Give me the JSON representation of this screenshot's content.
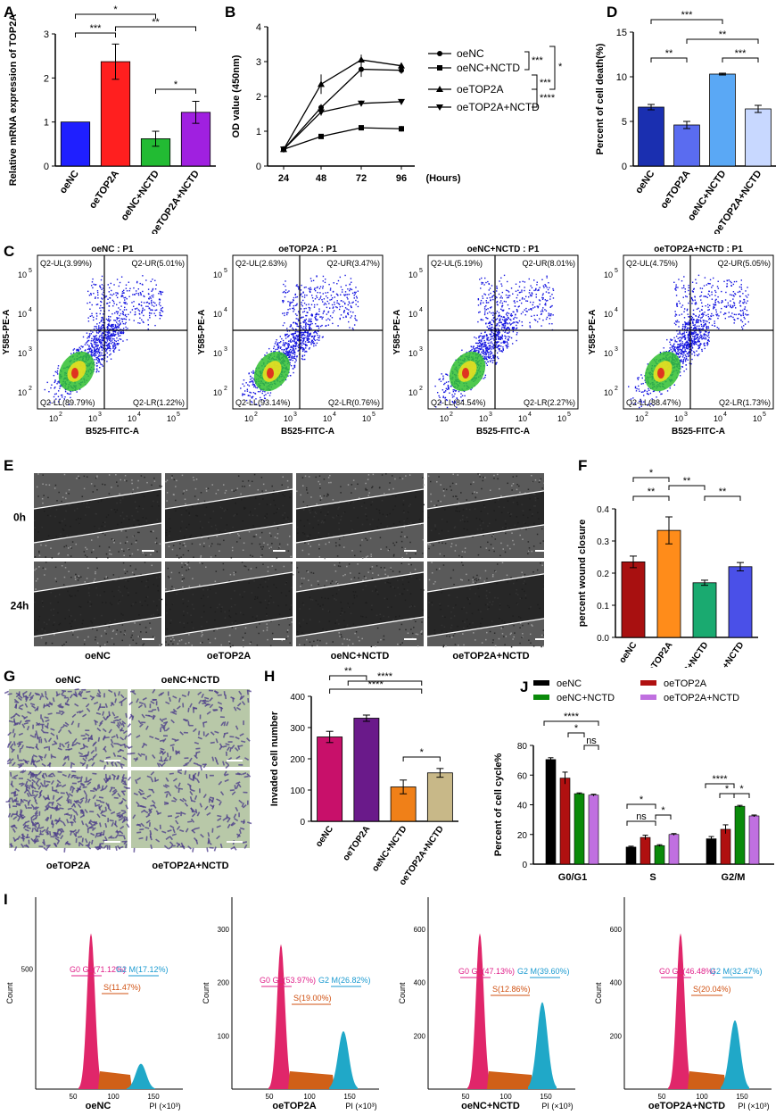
{
  "panels": {
    "A": "A",
    "B": "B",
    "C": "C",
    "D": "D",
    "E": "E",
    "F": "F",
    "G": "G",
    "H": "H",
    "I": "I",
    "J": "J"
  },
  "chart_data": [
    {
      "panel": "A",
      "type": "bar",
      "ylabel": "Relative mRNA expression of TOP2A",
      "categories": [
        "oeNC",
        "oeTOP2A",
        "oeNC+NCTD",
        "oeTOP2A+NCTD"
      ],
      "values": [
        1.0,
        2.37,
        0.62,
        1.22
      ],
      "errors": [
        0,
        0.4,
        0.17,
        0.25
      ],
      "colors": [
        "#1f1fff",
        "#ff1f1f",
        "#22bb33",
        "#a020e0"
      ],
      "ylim": [
        0,
        3
      ],
      "yticks": [
        "0",
        "1",
        "2",
        "3"
      ],
      "significance": [
        {
          "from": 0,
          "to": 1,
          "label": "***"
        },
        {
          "from": 0,
          "to": 2,
          "label": "*"
        },
        {
          "from": 1,
          "to": 3,
          "label": "**"
        },
        {
          "from": 2,
          "to": 3,
          "label": "*"
        }
      ]
    },
    {
      "panel": "B",
      "type": "line",
      "ylabel": "OD value (450nm)",
      "xlabel": "(Hours)",
      "x": [
        "24",
        "48",
        "72",
        "96"
      ],
      "series": [
        {
          "name": "oeNC",
          "marker": "circle",
          "values": [
            0.48,
            1.68,
            2.78,
            2.75
          ]
        },
        {
          "name": "oeNC+NCTD",
          "marker": "square",
          "values": [
            0.48,
            0.85,
            1.1,
            1.07
          ]
        },
        {
          "name": "oeTOP2A",
          "marker": "triangle",
          "values": [
            0.48,
            2.35,
            3.05,
            2.88
          ]
        },
        {
          "name": "oeTOP2A+NCTD",
          "marker": "tri-down",
          "values": [
            0.48,
            1.55,
            1.8,
            1.85
          ]
        }
      ],
      "ylim": [
        0,
        4
      ],
      "yticks": [
        "0",
        "1",
        "2",
        "3",
        "4"
      ],
      "significance": [
        "***",
        "*",
        "***",
        "****"
      ]
    },
    {
      "panel": "D",
      "type": "bar",
      "ylabel": "Percent of cell death(%)",
      "categories": [
        "oeNC",
        "oeTOP2A",
        "oeNC+NCTD",
        "oeTOP2A+NCTD"
      ],
      "values": [
        6.6,
        4.6,
        10.3,
        6.4
      ],
      "errors": [
        0.3,
        0.4,
        0.1,
        0.4
      ],
      "colors": [
        "#1a2fb0",
        "#5a6cf0",
        "#5aa8f5",
        "#c8d8ff"
      ],
      "ylim": [
        0,
        15
      ],
      "yticks": [
        "0",
        "5",
        "10",
        "15"
      ],
      "significance": [
        {
          "from": 0,
          "to": 2,
          "label": "***"
        },
        {
          "from": 0,
          "to": 1,
          "label": "**"
        },
        {
          "from": 1,
          "to": 2,
          "label": "**"
        },
        {
          "from": 2,
          "to": 3,
          "label": "***"
        }
      ]
    },
    {
      "panel": "F",
      "type": "bar",
      "ylabel": "percent wound closure",
      "categories": [
        "oeNC",
        "oeTOP2A",
        "oeNC+NCTD",
        "oeTOP2A+NCTD"
      ],
      "values": [
        0.235,
        0.333,
        0.17,
        0.22
      ],
      "errors": [
        0.018,
        0.042,
        0.008,
        0.013
      ],
      "colors": [
        "#a81010",
        "#ff8c1a",
        "#1aaa70",
        "#4a50e8"
      ],
      "ylim": [
        0,
        0.4
      ],
      "yticks": [
        "0.0",
        "0.1",
        "0.2",
        "0.3",
        "0.4"
      ],
      "significance": [
        {
          "from": 0,
          "to": 1,
          "label": "*"
        },
        {
          "from": 0,
          "to": 1,
          "label": "**"
        },
        {
          "from": 1,
          "to": 2,
          "label": "**"
        },
        {
          "from": 2,
          "to": 3,
          "label": "**"
        }
      ]
    },
    {
      "panel": "H",
      "type": "bar",
      "ylabel": "Invaded cell number",
      "categories": [
        "oeNC",
        "oeTOP2A",
        "oeNC+NCTD",
        "oeTOP2A+NCTD"
      ],
      "values": [
        270,
        330,
        110,
        155
      ],
      "errors": [
        18,
        10,
        22,
        14
      ],
      "colors": [
        "#c8106a",
        "#6a1a8a",
        "#f08018",
        "#c8b888"
      ],
      "ylim": [
        0,
        400
      ],
      "yticks": [
        "0",
        "100",
        "200",
        "300",
        "400"
      ],
      "significance": [
        "**",
        "****",
        "****",
        "*"
      ]
    },
    {
      "panel": "J",
      "type": "bar",
      "ylabel": "Percent of cell cycle%",
      "categories": [
        "G0/G1",
        "S",
        "G2/M"
      ],
      "series": [
        {
          "name": "oeNC",
          "color": "#000000",
          "values": [
            70.5,
            11.5,
            17.1
          ],
          "errors": [
            1.2,
            0.6,
            1.5
          ]
        },
        {
          "name": "oeTOP2A",
          "color": "#b01010",
          "values": [
            58,
            18,
            23.5
          ],
          "errors": [
            4,
            1.5,
            3
          ]
        },
        {
          "name": "oeNC+NCTD",
          "color": "#0a8a0a",
          "values": [
            47.5,
            12.5,
            39
          ],
          "errors": [
            0.5,
            0.6,
            0.6
          ]
        },
        {
          "name": "oeTOP2A+NCTD",
          "color": "#c070e0",
          "values": [
            46.5,
            20,
            32.5
          ],
          "errors": [
            0.6,
            0.6,
            0.6
          ]
        }
      ],
      "ylim": [
        0,
        80
      ],
      "yticks": [
        "0",
        "20",
        "40",
        "60",
        "80"
      ],
      "significance": [
        "****",
        "*",
        "ns",
        "ns",
        "*",
        "*",
        "****",
        "*",
        "*"
      ]
    }
  ],
  "flow_C": [
    {
      "title": "oeNC : P1",
      "ul": "Q2-UL(3.99%)",
      "ur": "Q2-UR(5.01%)",
      "ll": "Q2-LL(89.79%)",
      "lr": "Q2-LR(1.22%)"
    },
    {
      "title": "oeTOP2A : P1",
      "ul": "Q2-UL(2.63%)",
      "ur": "Q2-UR(3.47%)",
      "ll": "Q2-LL(93.14%)",
      "lr": "Q2-LR(0.76%)"
    },
    {
      "title": "oeNC+NCTD : P1",
      "ul": "Q2-UL(5.19%)",
      "ur": "Q2-UR(8.01%)",
      "ll": "Q2-LL(84.54%)",
      "lr": "Q2-LR(2.27%)"
    },
    {
      "title": "oeTOP2A+NCTD : P1",
      "ul": "Q2-UL(4.75%)",
      "ur": "Q2-UR(5.05%)",
      "ll": "Q2-LL(88.47%)",
      "lr": "Q2-LR(1.73%)"
    }
  ],
  "flow_axes": {
    "y": "Y585-PE-A",
    "x": "B525-FITC-A",
    "ticks": [
      "10",
      "10",
      "10",
      "10"
    ],
    "exps": [
      "2",
      "3",
      "4",
      "5"
    ]
  },
  "wound_E": {
    "rows": [
      "0h",
      "24h"
    ],
    "cols": [
      "oeNC",
      "oeTOP2A",
      "oeNC+NCTD",
      "oeTOP2A+NCTD"
    ]
  },
  "transwell_G": {
    "top": [
      "oeNC",
      "oeNC+NCTD"
    ],
    "bottom": [
      "oeTOP2A",
      "oeTOP2A+NCTD"
    ]
  },
  "cycle_I": [
    {
      "name": "oeNC",
      "g0": "G0 G1(71.12%)",
      "s": "S(11.47%)",
      "g2": "G2 M(17.12%)",
      "yticks": [
        "500"
      ],
      "xticks": [
        "50",
        "100",
        "150"
      ]
    },
    {
      "name": "oeTOP2A",
      "g0": "G0 G1(53.97%)",
      "s": "S(19.00%)",
      "g2": "G2 M(26.82%)",
      "yticks": [
        "100",
        "200",
        "300"
      ],
      "xticks": [
        "50",
        "100",
        "150"
      ]
    },
    {
      "name": "oeNC+NCTD",
      "g0": "G0 G1(47.13%)",
      "s": "S(12.86%)",
      "g2": "G2 M(39.60%)",
      "yticks": [
        "200",
        "400",
        "600"
      ],
      "xticks": [
        "50",
        "100",
        "150"
      ]
    },
    {
      "name": "oeTOP2A+NCTD",
      "g0": "G0 G1(46.48%)",
      "s": "S(20.04%)",
      "g2": "G2 M(32.47%)",
      "yticks": [
        "200",
        "400",
        "600"
      ],
      "xticks": [
        "50",
        "100",
        "150"
      ]
    }
  ],
  "cycle_axes": {
    "y": "Count",
    "x": "PI (×10³)"
  },
  "colors": {
    "dot_blue": "#1515e0",
    "hist_pink": "#e0266a",
    "hist_orange": "#d06018",
    "hist_cyan": "#20a8c8"
  }
}
